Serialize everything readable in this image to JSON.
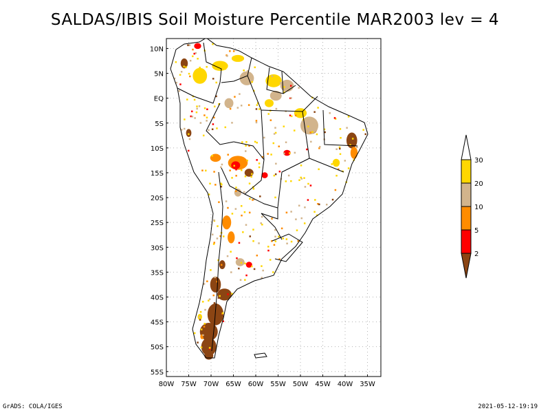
{
  "title": "SALDAS/IBIS Soil Moisture Percentile MAR2003 lev = 4",
  "footer": {
    "left": "GrADS: COLA/IGES",
    "right": "2021-05-12-19:19"
  },
  "map": {
    "lon_range": [
      -80,
      -32
    ],
    "lat_range": [
      -56,
      12
    ],
    "lon_ticks": [
      {
        "value": -80,
        "label": "80W"
      },
      {
        "value": -75,
        "label": "75W"
      },
      {
        "value": -70,
        "label": "70W"
      },
      {
        "value": -65,
        "label": "65W"
      },
      {
        "value": -60,
        "label": "60W"
      },
      {
        "value": -55,
        "label": "55W"
      },
      {
        "value": -50,
        "label": "50W"
      },
      {
        "value": -45,
        "label": "45W"
      },
      {
        "value": -40,
        "label": "40W"
      },
      {
        "value": -35,
        "label": "35W"
      }
    ],
    "lat_ticks": [
      {
        "value": 10,
        "label": "10N"
      },
      {
        "value": 5,
        "label": "5N"
      },
      {
        "value": 0,
        "label": "EQ"
      },
      {
        "value": -5,
        "label": "5S"
      },
      {
        "value": -10,
        "label": "10S"
      },
      {
        "value": -15,
        "label": "15S"
      },
      {
        "value": -20,
        "label": "20S"
      },
      {
        "value": -25,
        "label": "25S"
      },
      {
        "value": -30,
        "label": "30S"
      },
      {
        "value": -35,
        "label": "35S"
      },
      {
        "value": -40,
        "label": "40S"
      },
      {
        "value": -45,
        "label": "45S"
      },
      {
        "value": -50,
        "label": "50S"
      },
      {
        "value": -55,
        "label": "55S"
      }
    ],
    "grid": true,
    "coastline_color": "#000000"
  },
  "legend": {
    "colors": [
      "#8b4513",
      "#ff0000",
      "#ff8c00",
      "#d2b48c",
      "#ffd700",
      "#ffffff"
    ],
    "labels": [
      "2",
      "5",
      "10",
      "20",
      "30"
    ]
  },
  "regions": [
    {
      "lon": -72.5,
      "lat": 4.5,
      "rx": 1.6,
      "ry": 1.6,
      "cls": 4
    },
    {
      "lon": -68.0,
      "lat": 6.5,
      "rx": 1.8,
      "ry": 1.0,
      "cls": 4
    },
    {
      "lon": -64.0,
      "lat": 8.0,
      "rx": 1.4,
      "ry": 0.7,
      "cls": 4
    },
    {
      "lon": -62.0,
      "lat": 4.0,
      "rx": 1.6,
      "ry": 1.4,
      "cls": 3
    },
    {
      "lon": -56.0,
      "lat": 3.5,
      "rx": 1.8,
      "ry": 1.3,
      "cls": 4
    },
    {
      "lon": -53.0,
      "lat": 2.5,
      "rx": 1.5,
      "ry": 1.2,
      "cls": 3
    },
    {
      "lon": -55.5,
      "lat": 0.5,
      "rx": 1.3,
      "ry": 1.0,
      "cls": 3
    },
    {
      "lon": -57.0,
      "lat": -1.0,
      "rx": 1.0,
      "ry": 0.8,
      "cls": 4
    },
    {
      "lon": -50.0,
      "lat": -3.0,
      "rx": 1.4,
      "ry": 1.0,
      "cls": 4
    },
    {
      "lon": -47.5,
      "lat": -6.0,
      "rx": 1.3,
      "ry": 1.2,
      "cls": 0
    },
    {
      "lon": -48.0,
      "lat": -5.5,
      "rx": 2.0,
      "ry": 1.8,
      "cls": 3
    },
    {
      "lon": -66.0,
      "lat": -1.0,
      "rx": 1.0,
      "ry": 1.0,
      "cls": 3
    },
    {
      "lon": -76.0,
      "lat": 7.0,
      "rx": 0.8,
      "ry": 1.0,
      "cls": 0
    },
    {
      "lon": -73.0,
      "lat": 10.5,
      "rx": 0.8,
      "ry": 0.6,
      "cls": 1
    },
    {
      "lon": -75.0,
      "lat": -7.0,
      "rx": 0.6,
      "ry": 0.8,
      "cls": 0
    },
    {
      "lon": -64.0,
      "lat": -13.0,
      "rx": 2.2,
      "ry": 1.4,
      "cls": 2
    },
    {
      "lon": -64.5,
      "lat": -13.5,
      "rx": 1.0,
      "ry": 0.8,
      "cls": 1
    },
    {
      "lon": -61.5,
      "lat": -15.0,
      "rx": 1.0,
      "ry": 0.8,
      "cls": 0
    },
    {
      "lon": -58.0,
      "lat": -15.5,
      "rx": 0.7,
      "ry": 0.6,
      "cls": 1
    },
    {
      "lon": -69.0,
      "lat": -12.0,
      "rx": 1.2,
      "ry": 0.8,
      "cls": 2
    },
    {
      "lon": -53.0,
      "lat": -11.0,
      "rx": 0.8,
      "ry": 0.6,
      "cls": 1
    },
    {
      "lon": -38.5,
      "lat": -8.5,
      "rx": 1.2,
      "ry": 1.6,
      "cls": 0
    },
    {
      "lon": -38.0,
      "lat": -11.0,
      "rx": 0.8,
      "ry": 1.2,
      "cls": 2
    },
    {
      "lon": -42.0,
      "lat": -13.0,
      "rx": 0.8,
      "ry": 0.8,
      "cls": 4
    },
    {
      "lon": -64.0,
      "lat": -19.0,
      "rx": 0.8,
      "ry": 0.8,
      "cls": 3
    },
    {
      "lon": -66.5,
      "lat": -25.0,
      "rx": 1.0,
      "ry": 1.4,
      "cls": 2
    },
    {
      "lon": -65.5,
      "lat": -28.0,
      "rx": 0.8,
      "ry": 1.2,
      "cls": 2
    },
    {
      "lon": -63.5,
      "lat": -33.0,
      "rx": 1.0,
      "ry": 0.8,
      "cls": 3
    },
    {
      "lon": -61.5,
      "lat": -33.5,
      "rx": 0.7,
      "ry": 0.6,
      "cls": 1
    },
    {
      "lon": -67.5,
      "lat": -33.5,
      "rx": 0.7,
      "ry": 0.9,
      "cls": 0
    },
    {
      "lon": -69.0,
      "lat": -37.5,
      "rx": 1.2,
      "ry": 1.6,
      "cls": 0
    },
    {
      "lon": -67.0,
      "lat": -39.5,
      "rx": 1.6,
      "ry": 1.2,
      "cls": 0
    },
    {
      "lon": -69.0,
      "lat": -43.5,
      "rx": 1.8,
      "ry": 2.2,
      "cls": 0
    },
    {
      "lon": -70.5,
      "lat": -47.0,
      "rx": 2.0,
      "ry": 1.8,
      "cls": 0
    },
    {
      "lon": -70.5,
      "lat": -50.0,
      "rx": 1.7,
      "ry": 1.8,
      "cls": 0
    },
    {
      "lon": -70.5,
      "lat": -51.8,
      "rx": 1.0,
      "ry": 0.8,
      "cls": 0
    },
    {
      "lon": -72.5,
      "lat": -44.0,
      "rx": 0.5,
      "ry": 0.6,
      "cls": 4
    },
    {
      "lon": -72.0,
      "lat": -48.0,
      "rx": 0.4,
      "ry": 0.5,
      "cls": 2
    }
  ]
}
